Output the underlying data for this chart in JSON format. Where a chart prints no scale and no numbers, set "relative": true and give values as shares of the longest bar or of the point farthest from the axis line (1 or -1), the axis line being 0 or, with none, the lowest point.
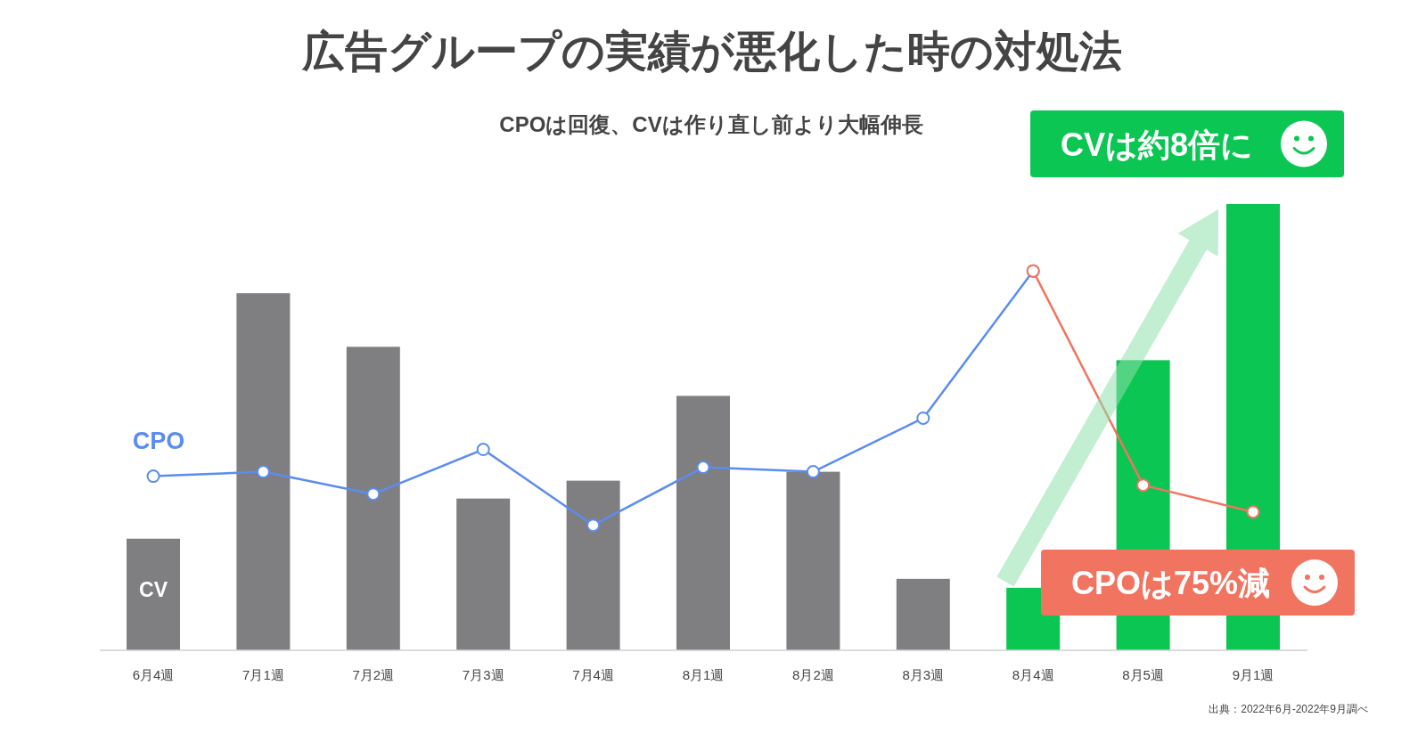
{
  "chart_data": {
    "type": "bar",
    "relative": true,
    "title": "広告グループの実績が悪化した時の対処法",
    "subtitle": "CPOは回復、CVは作り直し前より大幅伸長",
    "categories": [
      "6月4週",
      "7月1週",
      "7月2週",
      "7月3週",
      "7月4週",
      "8月1週",
      "8月2週",
      "8月3週",
      "8月4週",
      "8月5週",
      "9月1週"
    ],
    "marker": "circle",
    "series": [
      {
        "name": "CV",
        "colors": [
          "#7f7e80",
          "#7f7e80",
          "#7f7e80",
          "#7f7e80",
          "#7f7e80",
          "#7f7e80",
          "#7f7e80",
          "#7f7e80",
          "#0bc653",
          "#0bc653",
          "#0bc653"
        ],
        "values": [
          0.25,
          0.8,
          0.68,
          0.34,
          0.38,
          0.57,
          0.4,
          0.16,
          0.14,
          0.65,
          1.0
        ]
      },
      {
        "name": "CPO",
        "type": "line",
        "color": "#5b8def",
        "values": [
          0.39,
          0.4,
          0.35,
          0.45,
          0.28,
          0.41,
          0.4,
          0.52,
          0.85,
          null,
          null
        ]
      },
      {
        "type": "line",
        "color": "#f07460",
        "values": [
          null,
          null,
          null,
          null,
          null,
          null,
          null,
          null,
          0.85,
          0.37,
          0.31
        ]
      }
    ],
    "annotations": [
      "CVは約8倍に",
      "CPOは75%減",
      "出典：2022年6月-2022年9月調べ"
    ]
  }
}
